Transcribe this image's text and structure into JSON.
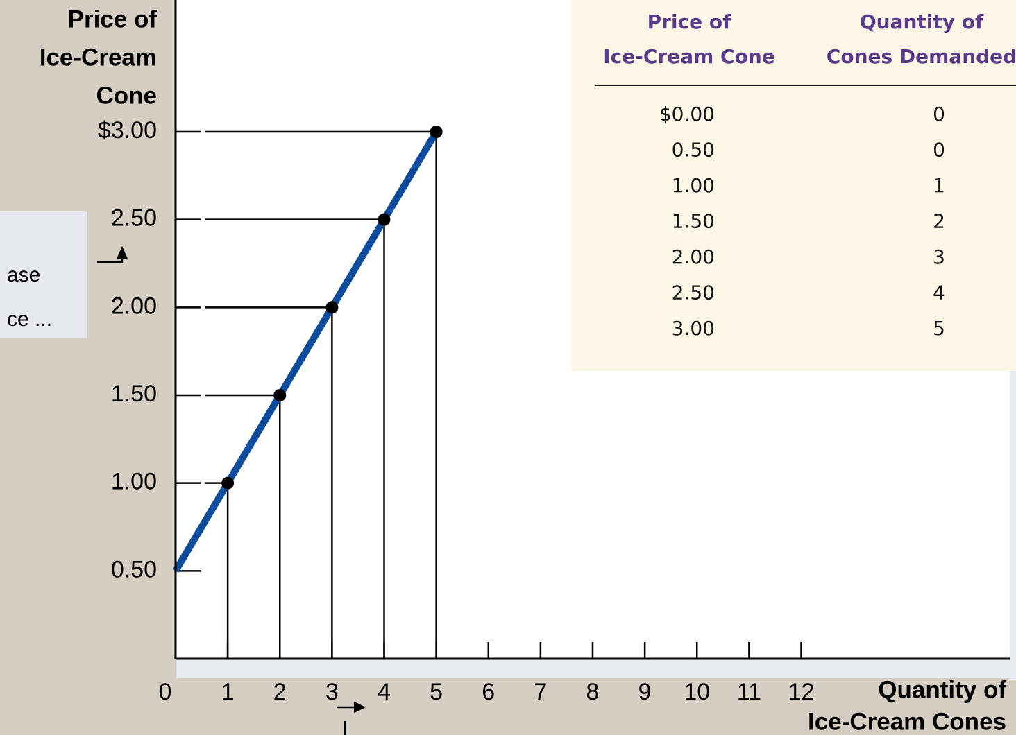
{
  "chart_data": {
    "type": "line",
    "ylabel": [
      "Price of",
      "Ice-Cream",
      "Cone"
    ],
    "xlabel": [
      "Quantity of",
      "Ice-Cream Cones"
    ],
    "x": [
      0,
      1,
      2,
      3,
      4,
      5
    ],
    "series": [
      {
        "color": "#0d4c9c",
        "values": [
          0.5,
          1.0,
          1.5,
          2.0,
          2.5,
          3.0
        ],
        "markers": [
          false,
          true,
          true,
          true,
          true,
          true
        ]
      }
    ],
    "xlim": [
      0,
      16
    ],
    "ylim": [
      0,
      3.75
    ],
    "xticks": [
      0,
      1,
      2,
      3,
      4,
      5,
      6,
      7,
      8,
      9,
      10,
      11,
      12
    ],
    "yticks": [
      {
        "value": 0.5,
        "label": "0.50"
      },
      {
        "value": 1.0,
        "label": "1.00"
      },
      {
        "value": 1.5,
        "label": "1.50"
      },
      {
        "value": 2.0,
        "label": "2.00"
      },
      {
        "value": 2.5,
        "label": "2.50"
      },
      {
        "value": 3.0,
        "label": "$3.00"
      }
    ],
    "drop_lines": true,
    "annotation": [
      "ase",
      "ce ..."
    ]
  },
  "table": {
    "columns": [
      [
        "Price of",
        "Ice-Cream Cone"
      ],
      [
        "Quantity of",
        "Cones Demanded"
      ]
    ],
    "rows": [
      [
        "$0.00",
        "0"
      ],
      [
        "0.50",
        "0"
      ],
      [
        "1.00",
        "1"
      ],
      [
        "1.50",
        "2"
      ],
      [
        "2.00",
        "3"
      ],
      [
        "2.50",
        "4"
      ],
      [
        "3.00",
        "5"
      ]
    ]
  }
}
